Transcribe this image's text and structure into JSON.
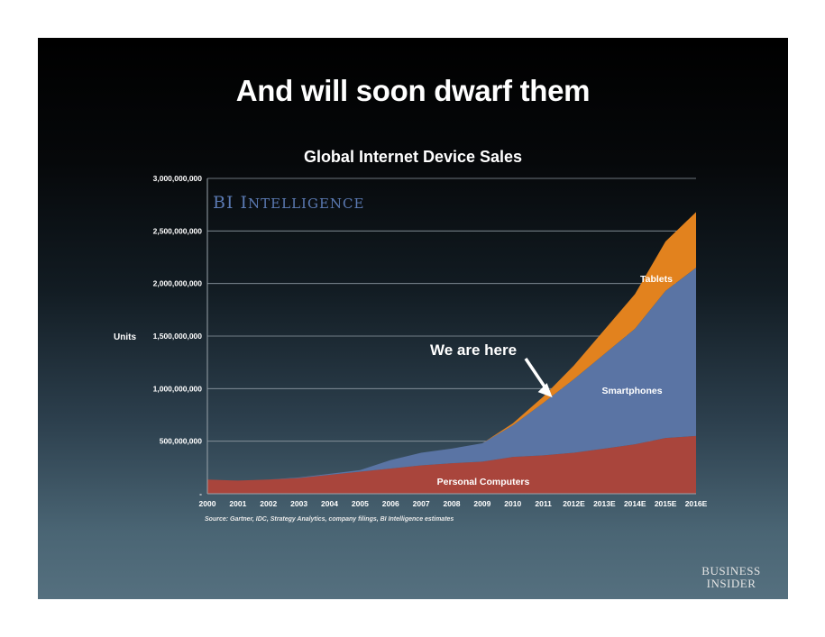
{
  "slide": {
    "headline": "And will soon dwarf them",
    "brand_logo": "BI INTELLIGENCE",
    "publisher_logo": [
      "BUSINESS",
      "INSIDER"
    ],
    "source": "Source: Gartner, IDC, Strategy Analytics, company filings, BI Intelligence estimates"
  },
  "colors": {
    "personal_computers": "#a9453c",
    "smartphones": "#5a74a4",
    "tablets": "#e2821e",
    "brand": "#5b7ab3",
    "text": "#ffffff"
  },
  "chart_data": {
    "type": "area",
    "stacked": true,
    "title": "Global Internet Device Sales",
    "ylabel": "Units",
    "xlabel": "",
    "categories": [
      "2000",
      "2001",
      "2002",
      "2003",
      "2004",
      "2005",
      "2006",
      "2007",
      "2008",
      "2009",
      "2010",
      "2011",
      "2012E",
      "2013E",
      "2014E",
      "2015E",
      "2016E"
    ],
    "y_tick_labels": [
      "-",
      "500,000,000",
      "1,000,000,000",
      "1,500,000,000",
      "2,000,000,000",
      "2,500,000,000",
      "3,000,000,000"
    ],
    "ylim": [
      0,
      3000000000
    ],
    "grid": true,
    "series": [
      {
        "name": "Personal Computers",
        "values": [
          135000000,
          125000000,
          135000000,
          150000000,
          180000000,
          210000000,
          240000000,
          270000000,
          290000000,
          305000000,
          350000000,
          365000000,
          390000000,
          430000000,
          470000000,
          530000000,
          550000000
        ]
      },
      {
        "name": "Smartphones",
        "values": [
          0,
          0,
          0,
          5000000,
          10000000,
          15000000,
          80000000,
          120000000,
          140000000,
          175000000,
          300000000,
          500000000,
          700000000,
          900000000,
          1100000000,
          1400000000,
          1600000000
        ]
      },
      {
        "name": "Tablets",
        "values": [
          0,
          0,
          0,
          0,
          0,
          0,
          0,
          0,
          0,
          0,
          20000000,
          60000000,
          130000000,
          230000000,
          330000000,
          470000000,
          530000000
        ]
      }
    ],
    "annotations": [
      {
        "text": "We are here",
        "x": "2011",
        "y": 925000000
      }
    ]
  }
}
